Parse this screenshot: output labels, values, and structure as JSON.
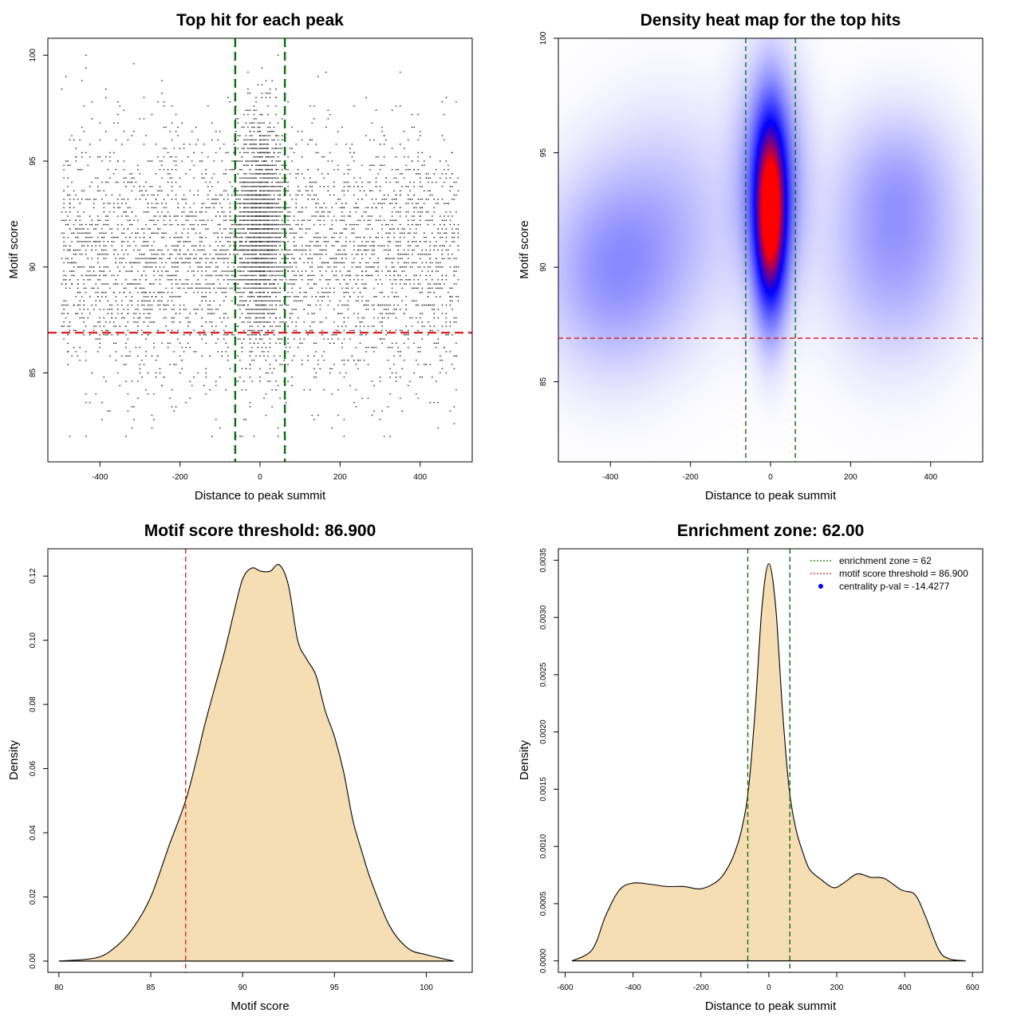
{
  "colors": {
    "threshold": "#dd2222",
    "zone": "#0a6e0a",
    "fill": "#f5deb3",
    "heat_low": "#ffffff",
    "heat_mid": "#0000ff",
    "heat_high": "#ff0000"
  },
  "chart_data": [
    {
      "type": "scatter",
      "title": "Top hit for each peak",
      "xlabel": "Distance to peak summit",
      "ylabel": "Motif score",
      "xlim": [
        -530,
        530
      ],
      "ylim": [
        80.8,
        100.8
      ],
      "xticks": [
        "-400",
        "-200",
        "0",
        "200",
        "400"
      ],
      "yticks": [
        "85",
        "90",
        "95",
        "100"
      ],
      "hlines": [
        86.9
      ],
      "vlines": [
        -62,
        62
      ],
      "points": {
        "n": 6200,
        "x_range": [
          -495,
          495
        ],
        "background_mean": 90.5,
        "background_sd": 2.9,
        "center_fraction": 0.32,
        "center_sd_x": 28,
        "center_mean": 92.0,
        "center_sd": 2.6,
        "y_range": [
          82,
          100
        ]
      }
    },
    {
      "type": "heatmap",
      "title": "Density heat map for the top hits",
      "xlabel": "Distance to peak summit",
      "ylabel": "Motif score",
      "xlim": [
        -530,
        530
      ],
      "ylim": [
        81.5,
        100
      ],
      "xticks": [
        "-400",
        "-200",
        "0",
        "200",
        "400"
      ],
      "yticks": [
        "85",
        "90",
        "95",
        "100"
      ],
      "hlines": [
        86.9
      ],
      "vlines": [
        -62,
        62
      ],
      "hotspots": [
        {
          "x": 0,
          "y": 92.3,
          "sx": 26,
          "sy": 2.7,
          "w": 1.0
        },
        {
          "x": 0,
          "y": 93.8,
          "sx": 55,
          "sy": 3.2,
          "w": 0.3
        },
        {
          "x": -400,
          "y": 89.8,
          "sx": 110,
          "sy": 2.8,
          "w": 0.18
        },
        {
          "x": -250,
          "y": 92.0,
          "sx": 120,
          "sy": 3.2,
          "w": 0.1
        },
        {
          "x": 310,
          "y": 90.8,
          "sx": 110,
          "sy": 3.0,
          "w": 0.17
        },
        {
          "x": 320,
          "y": 94.0,
          "sx": 90,
          "sy": 2.0,
          "w": 0.08
        }
      ]
    },
    {
      "type": "area",
      "title": "Motif score threshold: 86.900",
      "xlabel": "Motif score",
      "ylabel": "Density",
      "xlim": [
        79.4,
        102.5
      ],
      "ylim": [
        -0.0035,
        0.1285
      ],
      "xticks": [
        "80",
        "85",
        "90",
        "95",
        "100"
      ],
      "yticks": [
        "0.00",
        "0.02",
        "0.04",
        "0.06",
        "0.08",
        "0.10",
        "0.12"
      ],
      "vlines": [
        86.9
      ],
      "x": [
        80.0,
        82.0,
        83.0,
        84.0,
        85.0,
        86.0,
        86.9,
        87.5,
        88.0,
        89.0,
        89.5,
        90.0,
        90.5,
        91.0,
        91.5,
        92.0,
        92.5,
        93.0,
        93.5,
        94.0,
        94.5,
        95.0,
        95.5,
        96.0,
        96.5,
        97.0,
        98.0,
        99.0,
        100.0,
        101.5
      ],
      "y": [
        0.0,
        0.001,
        0.004,
        0.01,
        0.02,
        0.036,
        0.05,
        0.063,
        0.075,
        0.096,
        0.108,
        0.119,
        0.1225,
        0.1215,
        0.1215,
        0.1235,
        0.117,
        0.1,
        0.094,
        0.089,
        0.078,
        0.07,
        0.059,
        0.044,
        0.034,
        0.025,
        0.011,
        0.004,
        0.002,
        0.0
      ]
    },
    {
      "type": "area",
      "title": "Enrichment zone: 62.00",
      "xlabel": "Distance to peak summit",
      "ylabel": "Density",
      "xlim": [
        -620,
        630
      ],
      "ylim": [
        -0.0001,
        0.0036
      ],
      "xticks": [
        "-600",
        "-400",
        "-200",
        "0",
        "200",
        "400",
        "600"
      ],
      "yticks": [
        "0.0000",
        "0.0005",
        "0.0010",
        "0.0015",
        "0.0020",
        "0.0025",
        "0.0030",
        "0.0035"
      ],
      "vlines": [
        -62,
        62
      ],
      "x": [
        -580,
        -520,
        -480,
        -440,
        -400,
        -350,
        -300,
        -250,
        -200,
        -150,
        -120,
        -100,
        -80,
        -60,
        -40,
        -20,
        0,
        20,
        40,
        60,
        80,
        100,
        120,
        150,
        190,
        220,
        260,
        300,
        340,
        390,
        430,
        460,
        500,
        530,
        580
      ],
      "y": [
        0.0,
        0.0001,
        0.0004,
        0.00062,
        0.00068,
        0.00067,
        0.00065,
        0.00065,
        0.00063,
        0.0007,
        0.00082,
        0.00095,
        0.00115,
        0.0015,
        0.0022,
        0.0031,
        0.00347,
        0.0031,
        0.0022,
        0.0015,
        0.00115,
        0.00095,
        0.0008,
        0.00072,
        0.00064,
        0.00068,
        0.00076,
        0.00073,
        0.00072,
        0.00062,
        0.00058,
        0.0004,
        0.0001,
        2e-05,
        0.0
      ],
      "legend": {
        "placement": "top-right",
        "entries": [
          {
            "label": "enrichment zone = 62",
            "symbol": "dotted-line",
            "color": "#0a6e0a"
          },
          {
            "label": "motif score threshold = 86.900",
            "symbol": "dotted-line",
            "color": "#dd2222"
          },
          {
            "label": "centrality p-val = -14.4277",
            "symbol": "dot",
            "color": "#0000ff"
          }
        ]
      }
    }
  ]
}
